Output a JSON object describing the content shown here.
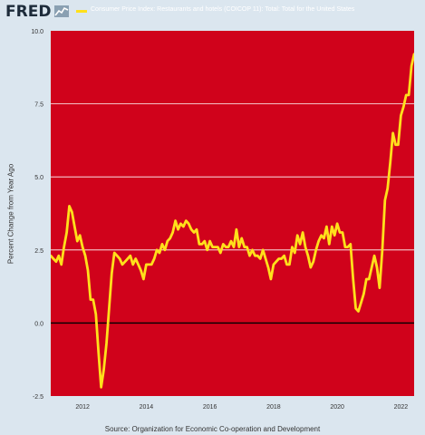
{
  "header": {
    "logo_text": "FRED",
    "logo_mark_icon": "fred-chart-icon"
  },
  "source_text": "Source: Organization for Economic Co-operation and Development",
  "colors": {
    "plot_background": "#d0021b",
    "series_line": "#ffe01b",
    "zero_line": "#000000",
    "gridline": "#ffffff",
    "page_background": "#dbe6ef"
  },
  "chart_data": {
    "type": "line",
    "title": "",
    "xlabel": "",
    "ylabel": "Percent Change from Year Ago",
    "ylim": [
      -2.5,
      10.0
    ],
    "xlim": [
      "2011-01",
      "2022-06"
    ],
    "y_ticks": [
      "-2.5",
      "0.0",
      "2.5",
      "5.0",
      "7.5",
      "10.0"
    ],
    "x_ticks": [
      "2012",
      "2014",
      "2016",
      "2018",
      "2020",
      "2022"
    ],
    "grid": true,
    "legend_position": "top",
    "series": [
      {
        "name": "Consumer Price Index: Restaurants and hotels (COICOP 11): Total: Total for the United States",
        "points": [
          [
            "2011-01",
            2.3
          ],
          [
            "2011-02",
            2.2
          ],
          [
            "2011-03",
            2.1
          ],
          [
            "2011-04",
            2.3
          ],
          [
            "2011-05",
            2.0
          ],
          [
            "2011-06",
            2.6
          ],
          [
            "2011-07",
            3.1
          ],
          [
            "2011-08",
            4.0
          ],
          [
            "2011-09",
            3.8
          ],
          [
            "2011-10",
            3.3
          ],
          [
            "2011-11",
            2.8
          ],
          [
            "2011-12",
            3.0
          ],
          [
            "2012-01",
            2.6
          ],
          [
            "2012-02",
            2.3
          ],
          [
            "2012-03",
            1.8
          ],
          [
            "2012-04",
            0.8
          ],
          [
            "2012-05",
            0.8
          ],
          [
            "2012-06",
            0.3
          ],
          [
            "2012-07",
            -1.0
          ],
          [
            "2012-08",
            -2.2
          ],
          [
            "2012-09",
            -1.6
          ],
          [
            "2012-10",
            -0.7
          ],
          [
            "2012-11",
            0.5
          ],
          [
            "2012-12",
            1.7
          ],
          [
            "2013-01",
            2.4
          ],
          [
            "2013-02",
            2.3
          ],
          [
            "2013-03",
            2.2
          ],
          [
            "2013-04",
            2.0
          ],
          [
            "2013-05",
            2.1
          ],
          [
            "2013-06",
            2.2
          ],
          [
            "2013-07",
            2.3
          ],
          [
            "2013-08",
            2.0
          ],
          [
            "2013-09",
            2.2
          ],
          [
            "2013-10",
            2.0
          ],
          [
            "2013-11",
            1.8
          ],
          [
            "2013-12",
            1.5
          ],
          [
            "2014-01",
            2.0
          ],
          [
            "2014-02",
            2.0
          ],
          [
            "2014-03",
            2.0
          ],
          [
            "2014-04",
            2.2
          ],
          [
            "2014-05",
            2.5
          ],
          [
            "2014-06",
            2.4
          ],
          [
            "2014-07",
            2.7
          ],
          [
            "2014-08",
            2.5
          ],
          [
            "2014-09",
            2.8
          ],
          [
            "2014-10",
            2.9
          ],
          [
            "2014-11",
            3.1
          ],
          [
            "2014-12",
            3.5
          ],
          [
            "2015-01",
            3.2
          ],
          [
            "2015-02",
            3.4
          ],
          [
            "2015-03",
            3.3
          ],
          [
            "2015-04",
            3.5
          ],
          [
            "2015-05",
            3.4
          ],
          [
            "2015-06",
            3.2
          ],
          [
            "2015-07",
            3.1
          ],
          [
            "2015-08",
            3.2
          ],
          [
            "2015-09",
            2.7
          ],
          [
            "2015-10",
            2.7
          ],
          [
            "2015-11",
            2.8
          ],
          [
            "2015-12",
            2.5
          ],
          [
            "2016-01",
            2.8
          ],
          [
            "2016-02",
            2.6
          ],
          [
            "2016-03",
            2.6
          ],
          [
            "2016-04",
            2.6
          ],
          [
            "2016-05",
            2.4
          ],
          [
            "2016-06",
            2.7
          ],
          [
            "2016-07",
            2.6
          ],
          [
            "2016-08",
            2.6
          ],
          [
            "2016-09",
            2.8
          ],
          [
            "2016-10",
            2.6
          ],
          [
            "2016-11",
            3.2
          ],
          [
            "2016-12",
            2.6
          ],
          [
            "2017-01",
            2.9
          ],
          [
            "2017-02",
            2.6
          ],
          [
            "2017-03",
            2.6
          ],
          [
            "2017-04",
            2.3
          ],
          [
            "2017-05",
            2.5
          ],
          [
            "2017-06",
            2.3
          ],
          [
            "2017-07",
            2.3
          ],
          [
            "2017-08",
            2.2
          ],
          [
            "2017-09",
            2.5
          ],
          [
            "2017-10",
            2.2
          ],
          [
            "2017-11",
            1.9
          ],
          [
            "2017-12",
            1.5
          ],
          [
            "2018-01",
            2.0
          ],
          [
            "2018-02",
            2.1
          ],
          [
            "2018-03",
            2.2
          ],
          [
            "2018-04",
            2.2
          ],
          [
            "2018-05",
            2.3
          ],
          [
            "2018-06",
            2.0
          ],
          [
            "2018-07",
            2.0
          ],
          [
            "2018-08",
            2.6
          ],
          [
            "2018-09",
            2.4
          ],
          [
            "2018-10",
            3.0
          ],
          [
            "2018-11",
            2.7
          ],
          [
            "2018-12",
            3.1
          ],
          [
            "2019-01",
            2.6
          ],
          [
            "2019-02",
            2.3
          ],
          [
            "2019-03",
            1.9
          ],
          [
            "2019-04",
            2.1
          ],
          [
            "2019-05",
            2.5
          ],
          [
            "2019-06",
            2.8
          ],
          [
            "2019-07",
            3.0
          ],
          [
            "2019-08",
            2.9
          ],
          [
            "2019-09",
            3.3
          ],
          [
            "2019-10",
            2.7
          ],
          [
            "2019-11",
            3.3
          ],
          [
            "2019-12",
            3.0
          ],
          [
            "2020-01",
            3.4
          ],
          [
            "2020-02",
            3.1
          ],
          [
            "2020-03",
            3.1
          ],
          [
            "2020-04",
            2.6
          ],
          [
            "2020-05",
            2.6
          ],
          [
            "2020-06",
            2.7
          ],
          [
            "2020-07",
            1.5
          ],
          [
            "2020-08",
            0.5
          ],
          [
            "2020-09",
            0.4
          ],
          [
            "2020-10",
            0.7
          ],
          [
            "2020-11",
            1.0
          ],
          [
            "2020-12",
            1.5
          ],
          [
            "2021-01",
            1.5
          ],
          [
            "2021-02",
            1.9
          ],
          [
            "2021-03",
            2.3
          ],
          [
            "2021-04",
            1.9
          ],
          [
            "2021-05",
            1.2
          ],
          [
            "2021-06",
            2.5
          ],
          [
            "2021-07",
            4.2
          ],
          [
            "2021-08",
            4.6
          ],
          [
            "2021-09",
            5.5
          ],
          [
            "2021-10",
            6.5
          ],
          [
            "2021-11",
            6.1
          ],
          [
            "2021-12",
            6.1
          ],
          [
            "2022-01",
            7.1
          ],
          [
            "2022-02",
            7.4
          ],
          [
            "2022-03",
            7.8
          ],
          [
            "2022-04",
            7.8
          ],
          [
            "2022-05",
            8.8
          ],
          [
            "2022-06",
            9.2
          ],
          [
            "2022-07",
            8.9
          ],
          [
            "2022-08",
            9.2
          ]
        ]
      }
    ]
  }
}
